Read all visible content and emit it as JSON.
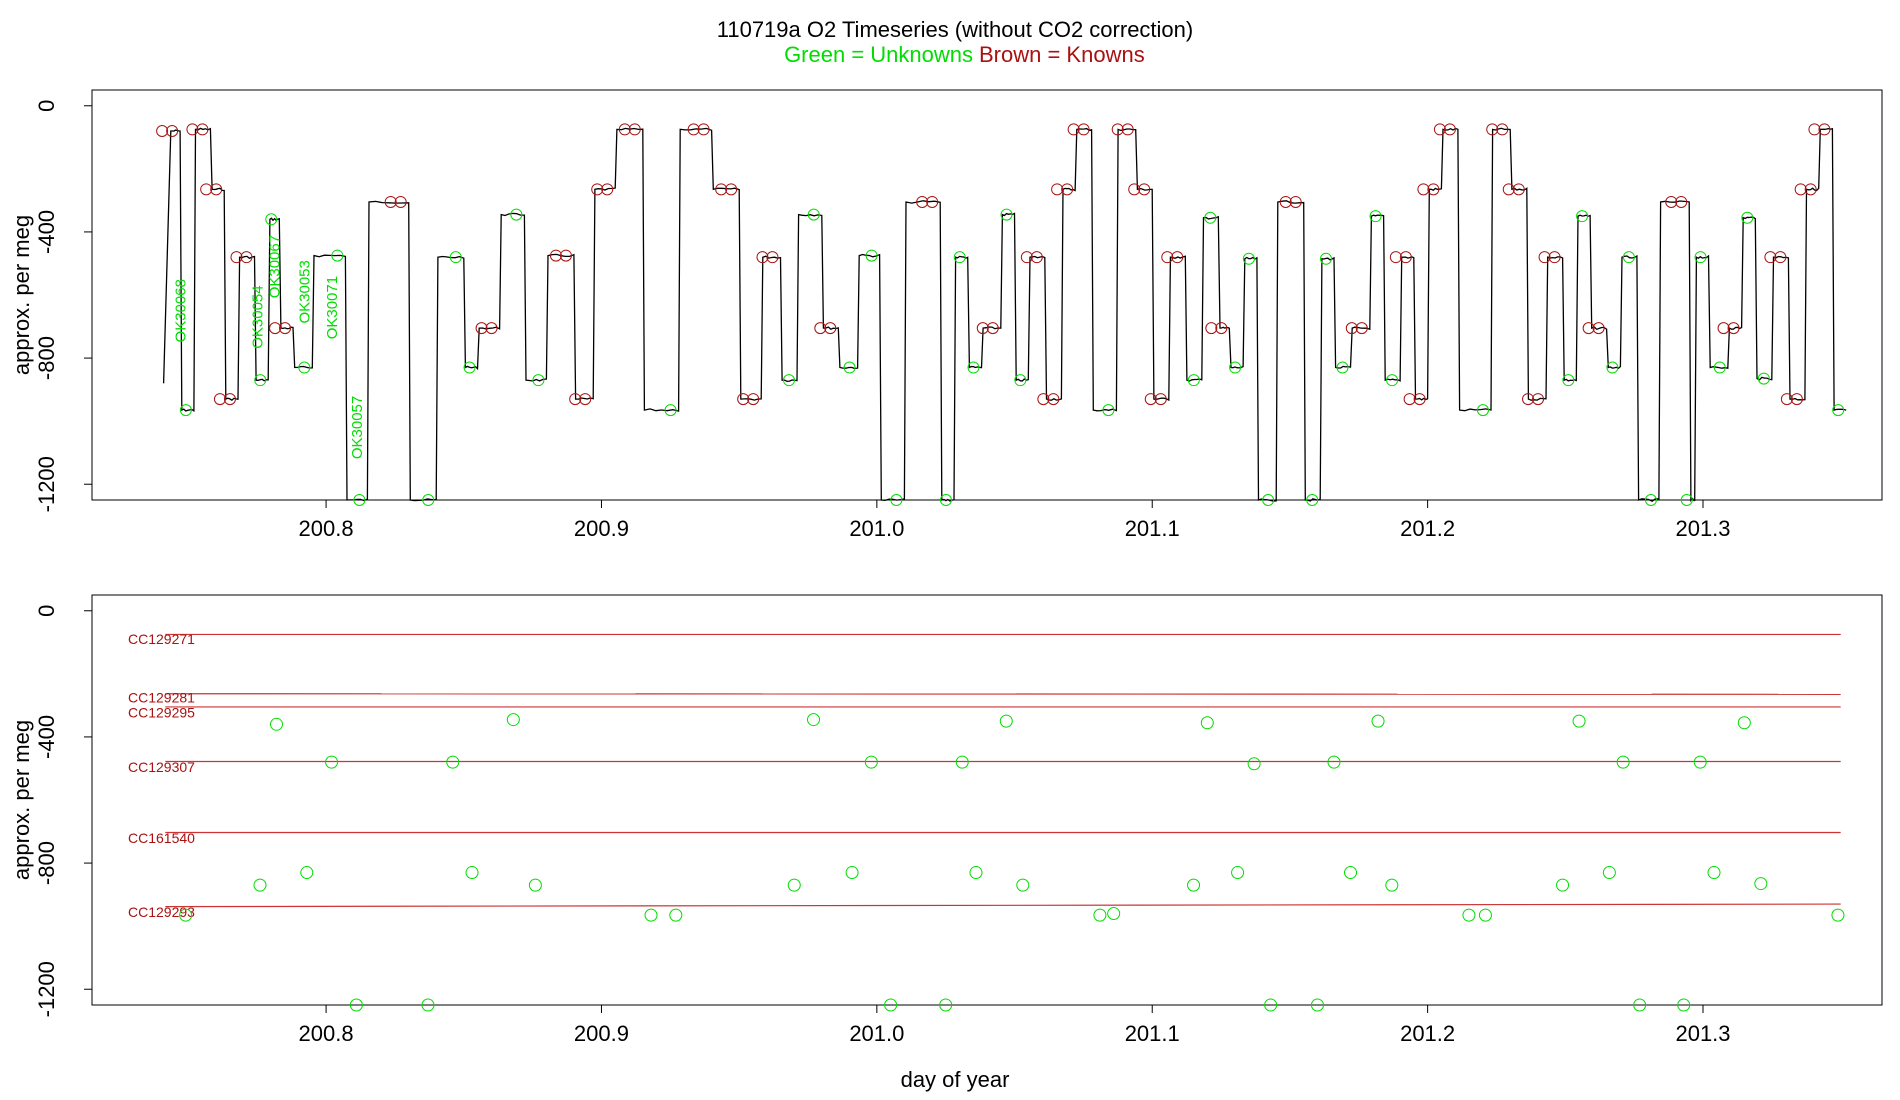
{
  "figure": {
    "title": "110719a   O2 Timeseries (without CO2 correction)",
    "subtitle_unknowns": "Green = Unknowns",
    "subtitle_knowns": "Brown = Knowns",
    "colors": {
      "unknown": "#00dd00",
      "known": "#aa1111",
      "trace": "#000000",
      "refline": "#cc3333"
    }
  },
  "chart_data": [
    {
      "type": "line",
      "title": "110719a   O2 Timeseries (without CO2 correction)",
      "ylabel": "approx. per meg",
      "xlabel": "",
      "xlim": [
        200.715,
        201.365
      ],
      "ylim": [
        -1250,
        50
      ],
      "x_ticks": [
        200.8,
        200.9,
        201.0,
        201.1,
        201.2,
        201.3
      ],
      "x_tick_labels": [
        "200.8",
        "200.9",
        "201.0",
        "201.1",
        "201.2",
        "201.3"
      ],
      "y_ticks": [
        0,
        -400,
        -800,
        -1200
      ],
      "y_tick_labels": [
        "0",
        "-400",
        "-800",
        "-1200"
      ],
      "trace_start_x": 200.741,
      "trace_start_y": -880,
      "segments": [
        [
          200.743,
          200.747,
          -80,
          "k"
        ],
        [
          200.747,
          200.752,
          -965,
          "u"
        ],
        [
          200.752,
          200.758,
          -75,
          "k"
        ],
        [
          200.758,
          200.763,
          -265,
          "k"
        ],
        [
          200.763,
          200.768,
          -930,
          "k"
        ],
        [
          200.768,
          200.774,
          -480,
          "k"
        ],
        [
          200.774,
          200.779,
          -870,
          "u"
        ],
        [
          200.779,
          200.783,
          -360,
          "u"
        ],
        [
          200.783,
          200.788,
          -705,
          "k"
        ],
        [
          200.788,
          200.795,
          -830,
          "u"
        ],
        [
          200.795,
          200.807,
          -475,
          "u"
        ],
        [
          200.807,
          200.815,
          -1250,
          "u"
        ],
        [
          200.815,
          200.83,
          -305,
          "k"
        ],
        [
          200.83,
          200.84,
          -1250,
          "u"
        ],
        [
          200.84,
          200.85,
          -480,
          "u"
        ],
        [
          200.85,
          200.855,
          -830,
          "u"
        ],
        [
          200.855,
          200.863,
          -705,
          "k"
        ],
        [
          200.863,
          200.872,
          -345,
          "u"
        ],
        [
          200.872,
          200.88,
          -870,
          "u"
        ],
        [
          200.88,
          200.89,
          -475,
          "k"
        ],
        [
          200.89,
          200.897,
          -930,
          "k"
        ],
        [
          200.897,
          200.905,
          -265,
          "k"
        ],
        [
          200.905,
          200.915,
          -75,
          "k"
        ],
        [
          200.915,
          200.928,
          -965,
          "u"
        ],
        [
          200.928,
          200.94,
          -75,
          "k"
        ],
        [
          200.94,
          200.95,
          -265,
          "k"
        ],
        [
          200.95,
          200.958,
          -930,
          "k"
        ],
        [
          200.958,
          200.965,
          -480,
          "k"
        ],
        [
          200.965,
          200.971,
          -870,
          "u"
        ],
        [
          200.971,
          200.98,
          -345,
          "u"
        ],
        [
          200.98,
          200.986,
          -705,
          "k"
        ],
        [
          200.986,
          200.993,
          -830,
          "u"
        ],
        [
          200.993,
          201.001,
          -475,
          "u"
        ],
        [
          201.001,
          201.01,
          -1250,
          "u"
        ],
        [
          201.01,
          201.023,
          -305,
          "k"
        ],
        [
          201.023,
          201.028,
          -1250,
          "u"
        ],
        [
          201.028,
          201.033,
          -480,
          "u"
        ],
        [
          201.033,
          201.038,
          -830,
          "u"
        ],
        [
          201.038,
          201.045,
          -705,
          "k"
        ],
        [
          201.045,
          201.05,
          -345,
          "u"
        ],
        [
          201.05,
          201.055,
          -870,
          "u"
        ],
        [
          201.055,
          201.061,
          -480,
          "k"
        ],
        [
          201.061,
          201.067,
          -930,
          "k"
        ],
        [
          201.067,
          201.072,
          -265,
          "k"
        ],
        [
          201.072,
          201.078,
          -75,
          "k"
        ],
        [
          201.078,
          201.087,
          -965,
          "u"
        ],
        [
          201.087,
          201.094,
          -75,
          "k"
        ],
        [
          201.094,
          201.1,
          -265,
          "k"
        ],
        [
          201.1,
          201.106,
          -930,
          "k"
        ],
        [
          201.106,
          201.112,
          -480,
          "k"
        ],
        [
          201.112,
          201.118,
          -870,
          "u"
        ],
        [
          201.118,
          201.124,
          -355,
          "u"
        ],
        [
          201.124,
          201.128,
          -705,
          "k"
        ],
        [
          201.128,
          201.133,
          -830,
          "u"
        ],
        [
          201.133,
          201.138,
          -485,
          "u"
        ],
        [
          201.138,
          201.145,
          -1250,
          "u"
        ],
        [
          201.145,
          201.155,
          -305,
          "k"
        ],
        [
          201.155,
          201.161,
          -1250,
          "u"
        ],
        [
          201.161,
          201.166,
          -485,
          "u"
        ],
        [
          201.166,
          201.172,
          -830,
          "u"
        ],
        [
          201.172,
          201.179,
          -705,
          "k"
        ],
        [
          201.179,
          201.184,
          -350,
          "u"
        ],
        [
          201.184,
          201.19,
          -870,
          "u"
        ],
        [
          201.19,
          201.195,
          -480,
          "k"
        ],
        [
          201.195,
          201.2,
          -930,
          "k"
        ],
        [
          201.2,
          201.205,
          -265,
          "k"
        ],
        [
          201.205,
          201.211,
          -75,
          "k"
        ],
        [
          201.211,
          201.223,
          -965,
          "u"
        ],
        [
          201.223,
          201.23,
          -75,
          "k"
        ],
        [
          201.23,
          201.236,
          -265,
          "k"
        ],
        [
          201.236,
          201.243,
          -930,
          "k"
        ],
        [
          201.243,
          201.249,
          -480,
          "k"
        ],
        [
          201.249,
          201.254,
          -870,
          "u"
        ],
        [
          201.254,
          201.259,
          -350,
          "u"
        ],
        [
          201.259,
          201.265,
          -705,
          "k"
        ],
        [
          201.265,
          201.27,
          -830,
          "u"
        ],
        [
          201.27,
          201.276,
          -480,
          "u"
        ],
        [
          201.276,
          201.284,
          -1250,
          "u"
        ],
        [
          201.284,
          201.295,
          -305,
          "k"
        ],
        [
          201.295,
          201.297,
          -1250,
          "u"
        ],
        [
          201.297,
          201.302,
          -480,
          "u"
        ],
        [
          201.302,
          201.309,
          -830,
          "u"
        ],
        [
          201.309,
          201.314,
          -705,
          "k"
        ],
        [
          201.314,
          201.319,
          -355,
          "u"
        ],
        [
          201.319,
          201.325,
          -865,
          "u"
        ],
        [
          201.325,
          201.331,
          -480,
          "k"
        ],
        [
          201.331,
          201.337,
          -930,
          "k"
        ],
        [
          201.337,
          201.342,
          -265,
          "k"
        ],
        [
          201.342,
          201.347,
          -75,
          "k"
        ],
        [
          201.347,
          201.352,
          -965,
          "u"
        ]
      ],
      "sample_labels": [
        {
          "text": "OK30068",
          "x": 200.749,
          "y": -650
        },
        {
          "text": "OK30054",
          "x": 200.777,
          "y": -670
        },
        {
          "text": "OK30067",
          "x": 200.783,
          "y": -510
        },
        {
          "text": "OK30053",
          "x": 200.794,
          "y": -590
        },
        {
          "text": "OK30071",
          "x": 200.804,
          "y": -640
        },
        {
          "text": "OK30057",
          "x": 200.813,
          "y": -1020
        }
      ]
    },
    {
      "type": "scatter",
      "ylabel": "approx. per meg",
      "xlabel": "day of year",
      "xlim": [
        200.715,
        201.365
      ],
      "ylim": [
        -1250,
        50
      ],
      "x_ticks": [
        200.8,
        200.9,
        201.0,
        201.1,
        201.2,
        201.3
      ],
      "x_tick_labels": [
        "200.8",
        "200.9",
        "201.0",
        "201.1",
        "201.2",
        "201.3"
      ],
      "y_ticks": [
        0,
        -400,
        -800,
        -1200
      ],
      "y_tick_labels": [
        "0",
        "-400",
        "-800",
        "-1200"
      ],
      "reference_lines": [
        {
          "name": "CC129271",
          "x_start": 200.73,
          "x_end": 201.35,
          "y_start": -75,
          "y_end": -75,
          "label_y": -90
        },
        {
          "name": "CC129281",
          "x_start": 200.73,
          "x_end": 201.35,
          "y_start": -263,
          "y_end": -265,
          "label_y": -275
        },
        {
          "name": "CC129295",
          "x_start": 200.73,
          "x_end": 201.35,
          "y_start": -305,
          "y_end": -305,
          "label_y": -322
        },
        {
          "name": "CC129307",
          "x_start": 200.73,
          "x_end": 201.35,
          "y_start": -478,
          "y_end": -478,
          "label_y": -495
        },
        {
          "name": "CC161540",
          "x_start": 200.73,
          "x_end": 201.35,
          "y_start": -703,
          "y_end": -703,
          "label_y": -720
        },
        {
          "name": "CC129293",
          "x_start": 200.73,
          "x_end": 201.35,
          "y_start": -938,
          "y_end": -930,
          "label_y": -955
        }
      ],
      "unknowns": {
        "x": [
          200.749,
          200.776,
          200.782,
          200.793,
          200.802,
          200.811,
          200.837,
          200.846,
          200.853,
          200.868,
          200.876,
          200.918,
          200.927,
          200.97,
          200.977,
          200.991,
          200.998,
          201.005,
          201.025,
          201.031,
          201.036,
          201.047,
          201.053,
          201.081,
          201.086,
          201.115,
          201.12,
          201.131,
          201.137,
          201.143,
          201.16,
          201.166,
          201.172,
          201.182,
          201.187,
          201.215,
          201.221,
          201.249,
          201.255,
          201.266,
          201.271,
          201.277,
          201.293,
          201.299,
          201.304,
          201.315,
          201.321,
          201.349
        ],
        "y": [
          -965,
          -870,
          -360,
          -830,
          -480,
          -1250,
          -1250,
          -480,
          -830,
          -345,
          -870,
          -965,
          -965,
          -870,
          -345,
          -830,
          -480,
          -1250,
          -1250,
          -480,
          -830,
          -350,
          -870,
          -965,
          -960,
          -870,
          -355,
          -830,
          -485,
          -1250,
          -1250,
          -480,
          -830,
          -350,
          -870,
          -965,
          -965,
          -870,
          -350,
          -830,
          -480,
          -1250,
          -1250,
          -480,
          -830,
          -355,
          -865,
          -965
        ]
      }
    }
  ]
}
